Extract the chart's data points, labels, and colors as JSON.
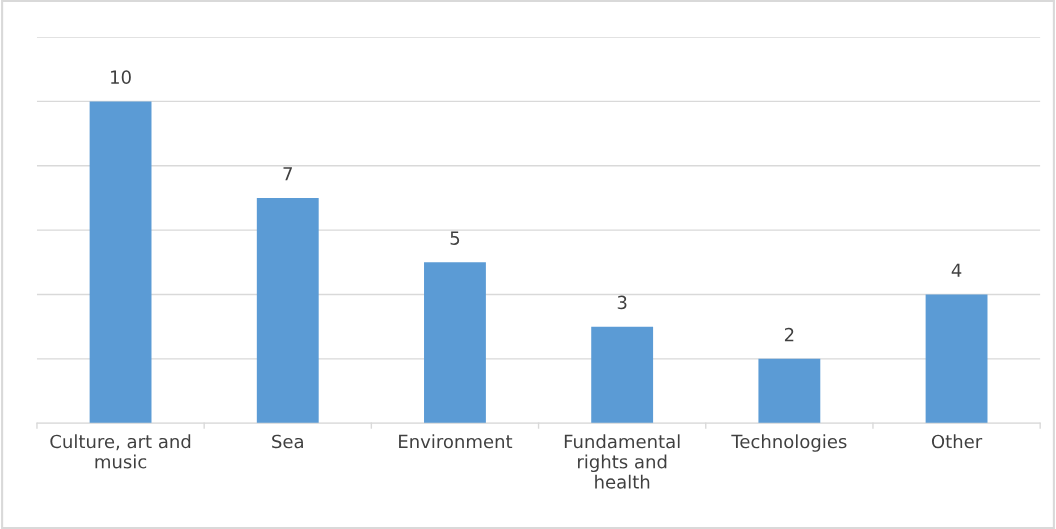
{
  "chart_data": {
    "type": "bar",
    "categories": [
      "Culture, art and music",
      "Sea",
      "Environment",
      "Fundamental rights and health",
      "Technologies",
      "Other"
    ],
    "values": [
      10,
      7,
      5,
      3,
      2,
      4
    ],
    "color": "#5b9bd5",
    "data_labels": true,
    "ylim": [
      0,
      12
    ],
    "yticks": [
      {
        "value": 0,
        "label": null
      },
      {
        "value": 2,
        "label": null
      },
      {
        "value": 4,
        "label": null
      },
      {
        "value": 6,
        "label": null
      },
      {
        "value": 8,
        "label": null
      },
      {
        "value": 10,
        "label": null
      },
      {
        "value": 12,
        "label": null
      }
    ],
    "tick_labels": "x",
    "grid": "y"
  }
}
